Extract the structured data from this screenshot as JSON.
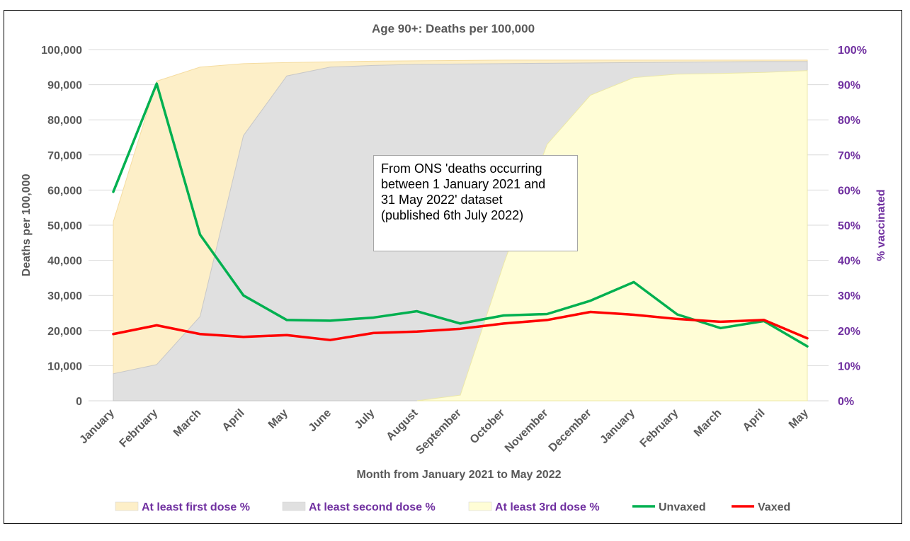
{
  "chart_data": {
    "type": "line",
    "title": "Age 90+: Deaths per 100,000",
    "xlabel": "Month from January 2021 to May 2022",
    "ylabel": "Deaths per 100,000",
    "y2label": "% vaccinated",
    "categories": [
      "January",
      "February",
      "March",
      "April",
      "May",
      "June",
      "July",
      "August",
      "September",
      "October",
      "November",
      "December",
      "January",
      "February",
      "March",
      "April",
      "May"
    ],
    "ylim": [
      0,
      100000
    ],
    "y2lim": [
      0,
      100
    ],
    "yticks": [
      "0",
      "10,000",
      "20,000",
      "30,000",
      "40,000",
      "50,000",
      "60,000",
      "70,000",
      "80,000",
      "90,000",
      "100,000"
    ],
    "y2ticks": [
      "0%",
      "10%",
      "20%",
      "30%",
      "40%",
      "50%",
      "60%",
      "70%",
      "80%",
      "90%",
      "100%"
    ],
    "grid": true,
    "legend_position": "bottom",
    "area_series": [
      {
        "name": "At least first dose %",
        "color": "#fdefc8",
        "stroke": "#f5dca0",
        "values": [
          51,
          91,
          95,
          96,
          96.3,
          96.5,
          96.7,
          96.8,
          96.9,
          97,
          97,
          97,
          97,
          97,
          97,
          97,
          97
        ]
      },
      {
        "name": "At least second dose %",
        "color": "#e0e0e0",
        "stroke": "#c8c8c8",
        "values": [
          7.7,
          10.3,
          24,
          75.5,
          92.5,
          95,
          95.5,
          95.8,
          95.9,
          96,
          96.1,
          96.2,
          96.3,
          96.4,
          96.5,
          96.6,
          96.6
        ]
      },
      {
        "name": "At least 3rd dose %",
        "color": "#fffdd6",
        "stroke": "#ece8a8",
        "values": [
          null,
          null,
          null,
          null,
          null,
          null,
          null,
          0,
          1.6,
          39,
          73,
          87,
          92,
          93,
          93.2,
          93.5,
          94
        ]
      }
    ],
    "series": [
      {
        "name": "Unvaxed",
        "color": "#00b050",
        "values": [
          59500,
          90300,
          47300,
          30000,
          23000,
          22800,
          23700,
          25500,
          22000,
          24300,
          24700,
          28500,
          33800,
          24600,
          20700,
          22700,
          15500
        ]
      },
      {
        "name": "Vaxed",
        "color": "#ff0000",
        "values": [
          19000,
          21500,
          19000,
          18200,
          18700,
          17300,
          19300,
          19700,
          20500,
          22000,
          23000,
          25300,
          24500,
          23300,
          22500,
          23000,
          17800
        ]
      }
    ],
    "annotation": [
      "From ONS 'deaths occurring",
      "between 1 January 2021 and",
      "31 May 2022' dataset",
      "(published 6th July 2022)"
    ],
    "legend": [
      {
        "label": "At least first dose %",
        "kind": "area",
        "color": "#fdefc8",
        "text_color": "#7030a0"
      },
      {
        "label": "At least second dose %",
        "kind": "area",
        "color": "#e0e0e0",
        "text_color": "#7030a0"
      },
      {
        "label": "At least 3rd dose %",
        "kind": "area",
        "color": "#fffdd6",
        "text_color": "#7030a0"
      },
      {
        "label": "Unvaxed",
        "kind": "line",
        "color": "#00b050",
        "text_color": "#595959"
      },
      {
        "label": "Vaxed",
        "kind": "line",
        "color": "#ff0000",
        "text_color": "#595959"
      }
    ]
  }
}
